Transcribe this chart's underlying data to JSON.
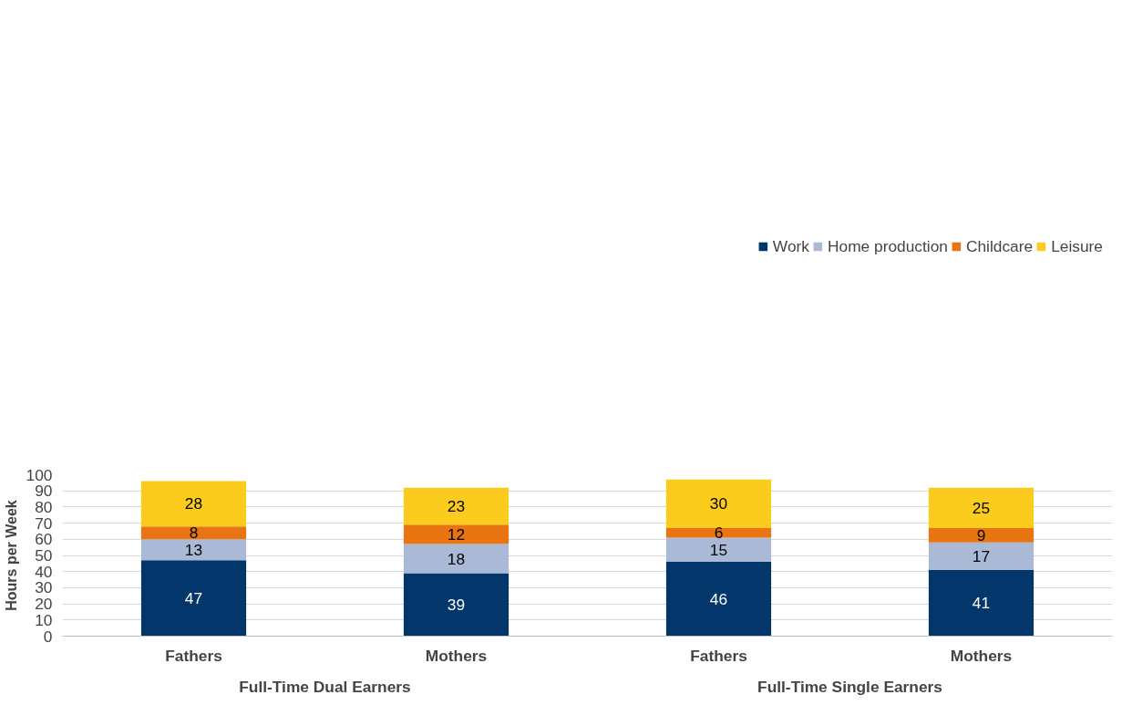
{
  "chart_data": {
    "type": "bar",
    "stacked": true,
    "ylabel": "Hours per Week",
    "categories": [
      "Fathers",
      "Mothers",
      "Fathers",
      "Mothers"
    ],
    "series": [
      {
        "name": "Work",
        "color": "#03366b",
        "values": [
          47,
          39,
          46,
          41
        ]
      },
      {
        "name": "Home production",
        "color": "#a9b9d6",
        "values": [
          13,
          18,
          15,
          17
        ]
      },
      {
        "name": "Childcare",
        "color": "#e87511",
        "values": [
          8,
          12,
          6,
          9
        ]
      },
      {
        "name": "Leisure",
        "color": "#fbcc1d",
        "values": [
          28,
          23,
          30,
          25
        ]
      }
    ],
    "ylim": [
      0,
      100
    ],
    "yticks": [
      0,
      10,
      20,
      30,
      40,
      50,
      60,
      70,
      80,
      90,
      100
    ],
    "grid": "y",
    "legend": "top",
    "data_labels": true,
    "annotations": [
      "Full-Time Dual Earners",
      "Full-Time Single Earners"
    ]
  }
}
